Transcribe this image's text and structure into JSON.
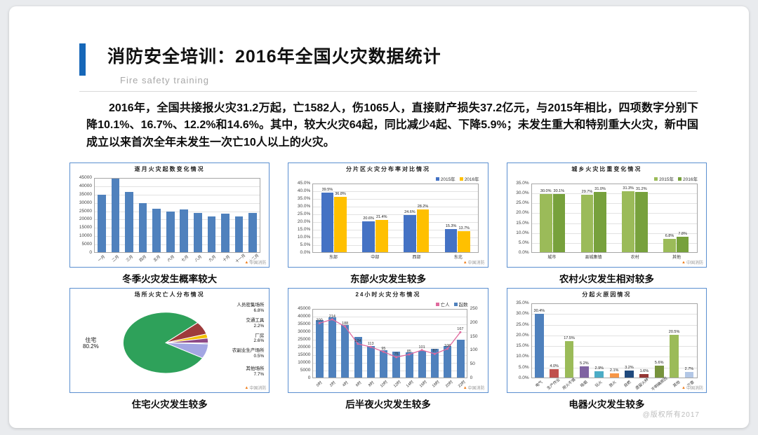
{
  "page": {
    "title": "消防安全培训：2016年全国火灾数据统计",
    "subtitle": "Fire safety training",
    "watermark": "@版权所有2017",
    "chart_watermark": "中国消防"
  },
  "colors": {
    "accent": "#1667b8",
    "chart_border": "#5b8fd0"
  },
  "intro": {
    "text": "2016年，全国共接报火灾31.2万起，亡1582人，伤1065人，直接财产损失37.2亿元，与2015年相比，四项数字分别下降10.1%、16.7%、12.2%和14.6%。其中，较大火灾64起，同比减少4起、下降5.9%；未发生重大和特别重大火灾，新中国成立以来首次全年未发生一次亡10人以上的火灾。"
  },
  "chart_data": [
    {
      "type": "bar",
      "title": "逐月火灾起数变化情况",
      "caption": "冬季火灾发生概率较大",
      "categories": [
        "一月",
        "二月",
        "三月",
        "四月",
        "五月",
        "六月",
        "七月",
        "八月",
        "九月",
        "十月",
        "十一月",
        "十二月"
      ],
      "values": [
        35000,
        45000,
        37000,
        30000,
        26500,
        25000,
        26000,
        24000,
        22000,
        23500,
        22000,
        24000
      ],
      "ylim": [
        0,
        45000
      ],
      "ytick_step": 5000,
      "bar_color": "#4f81bd",
      "rotate_xlabels": true,
      "grid": true,
      "legend_position": "none"
    },
    {
      "type": "grouped",
      "title": "分片区火灾分布率对比情况",
      "caption": "东部火灾发生较多",
      "categories": [
        "东部",
        "中部",
        "西部",
        "东北"
      ],
      "series": [
        {
          "name": "2015年",
          "color": "#4472c4",
          "values": [
            39.5,
            20.6,
            24.6,
            15.3
          ]
        },
        {
          "name": "2016年",
          "color": "#ffc000",
          "values": [
            36.8,
            21.4,
            28.2,
            13.7
          ]
        }
      ],
      "ylim": [
        0,
        45
      ],
      "ytick_step": 5,
      "ytick_pct": true,
      "show_labels": true,
      "grid": true,
      "legend_position": "top-right"
    },
    {
      "type": "grouped",
      "title": "城乡火灾比重变化情况",
      "caption": "农村火灾发生相对较多",
      "categories": [
        "城市",
        "县城集镇",
        "农村",
        "其他"
      ],
      "series": [
        {
          "name": "2015年",
          "color": "#9bbb59",
          "values": [
            30.0,
            29.7,
            31.3,
            6.8
          ]
        },
        {
          "name": "2016年",
          "color": "#77a13c",
          "values": [
            30.1,
            31.0,
            31.2,
            7.8
          ]
        }
      ],
      "ylim": [
        0,
        35
      ],
      "ytick_step": 5,
      "ytick_pct": true,
      "show_labels": true,
      "grid": true,
      "legend_position": "top-right"
    },
    {
      "type": "pie",
      "title": "场所火灾亡人分布情况",
      "caption": "住宅火灾发生较多",
      "slices": [
        {
          "label": "住宅",
          "value": 80.2,
          "color": "#2ea15a"
        },
        {
          "label": "人员密集场所",
          "value": 6.8,
          "color": "#9e3b3b"
        },
        {
          "label": "交通工具",
          "value": 2.2,
          "color": "#f2c100"
        },
        {
          "label": "厂房",
          "value": 2.6,
          "color": "#8e4a86"
        },
        {
          "label": "农副业生产场所",
          "value": 0.5,
          "color": "#27408b"
        },
        {
          "label": "其他场所",
          "value": 7.7,
          "color": "#a3a6e3"
        }
      ],
      "legend_position": "none"
    },
    {
      "type": "combo",
      "title": "24小时火灾分布情况",
      "caption": "后半夜火灾发生较多",
      "categories": [
        "0时",
        "2时",
        "4时",
        "6时",
        "8时",
        "10时",
        "12时",
        "14时",
        "16时",
        "18时",
        "20时",
        "22时"
      ],
      "bars": {
        "name": "起数",
        "color": "#4f81bd",
        "values": [
          38000,
          40000,
          35000,
          27000,
          21000,
          18000,
          17000,
          16500,
          17500,
          19000,
          21000,
          25000
        ],
        "ylim": [
          0,
          45000
        ],
        "ytick_step": 5000
      },
      "line": {
        "name": "亡人",
        "color": "#e06a9e",
        "values": [
          200,
          214,
          188,
          124,
          113,
          95,
          75,
          85,
          101,
          87,
          106,
          167
        ],
        "ylim": [
          0,
          250
        ],
        "ytick_step": 50
      },
      "rotate_xlabels": true,
      "grid": true,
      "legend_position": "top-right"
    },
    {
      "type": "bar",
      "title": "分起火原因情况",
      "caption": "电器火灾发生较多",
      "categories": [
        "电气",
        "生产作业",
        "用火不慎",
        "吸烟",
        "玩火",
        "放火",
        "自燃",
        "遗留火种",
        "不明确原因",
        "其他",
        "在查"
      ],
      "values": [
        30.4,
        4.0,
        17.5,
        5.2,
        2.9,
        2.1,
        3.2,
        1.6,
        5.6,
        20.5,
        2.7
      ],
      "colors": [
        "#4f81bd",
        "#c0504d",
        "#9bbb59",
        "#8064a2",
        "#4bacc6",
        "#f79646",
        "#1f497d",
        "#953735",
        "#77933c",
        "#9bbb59",
        "#b3c7e6"
      ],
      "ylim": [
        0,
        35
      ],
      "ytick_step": 5,
      "ytick_pct": true,
      "show_labels": true,
      "rotate_xlabels": true,
      "grid": true,
      "legend_position": "none"
    }
  ]
}
